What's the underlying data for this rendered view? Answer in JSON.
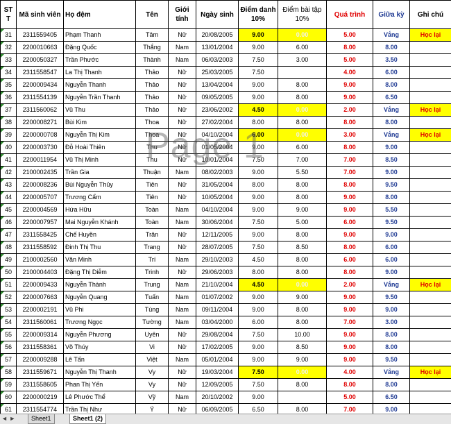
{
  "headers": {
    "stt": "ST T",
    "masv": "Mã sinh viên",
    "hodem": "Họ đệm",
    "ten": "Tên",
    "gioitinh": "Giới tính",
    "ngaysinh": "Ngày sinh",
    "diemdanh": "Điểm danh 10%",
    "baitap": "Điểm bài tập 10%",
    "quatrinh": "Quá trình",
    "giuaky": "Giữa kỳ",
    "ghichu": "Ghi chú"
  },
  "watermark": "Page 1",
  "sheet_tabs": {
    "nav": "◄ ►",
    "tab1": "Sheet1",
    "tab2": "Sheet1 (2)"
  },
  "rows": [
    {
      "stt": "31",
      "masv": "2311559405",
      "hodem": "Phạm Thanh",
      "ten": "Tâm",
      "gt": "Nữ",
      "ns": "20/08/2005",
      "dd": "9.00",
      "bt": "0.00",
      "qt": "5.00",
      "gk": "Vắng",
      "gc": "Học lại",
      "hl": true
    },
    {
      "stt": "32",
      "masv": "2200010663",
      "hodem": "Đặng Quốc",
      "ten": "Thắng",
      "gt": "Nam",
      "ns": "13/01/2004",
      "dd": "9.00",
      "bt": "6.00",
      "qt": "8.00",
      "gk": "8.00",
      "gc": "",
      "hl": false
    },
    {
      "stt": "33",
      "masv": "2200050327",
      "hodem": "Trần Phước",
      "ten": "Thành",
      "gt": "Nam",
      "ns": "06/03/2003",
      "dd": "7.50",
      "bt": "3.00",
      "qt": "5.00",
      "gk": "3.50",
      "gc": "",
      "hl": false
    },
    {
      "stt": "34",
      "masv": "2311558547",
      "hodem": "La Thị Thanh",
      "ten": "Thảo",
      "gt": "Nữ",
      "ns": "25/03/2005",
      "dd": "7.50",
      "bt": "",
      "qt": "4.00",
      "gk": "6.00",
      "gc": "",
      "hl": false
    },
    {
      "stt": "35",
      "masv": "2200009434",
      "hodem": "Nguyễn Thanh",
      "ten": "Thảo",
      "gt": "Nữ",
      "ns": "13/04/2004",
      "dd": "9.00",
      "bt": "8.00",
      "qt": "9.00",
      "gk": "8.00",
      "gc": "",
      "hl": false
    },
    {
      "stt": "36",
      "masv": "2311554139",
      "hodem": "Nguyễn Trần Thanh",
      "ten": "Thảo",
      "gt": "Nữ",
      "ns": "09/05/2005",
      "dd": "9.00",
      "bt": "8.00",
      "qt": "9.00",
      "gk": "6.50",
      "gc": "",
      "hl": false
    },
    {
      "stt": "37",
      "masv": "2311560062",
      "hodem": "Vũ Thu",
      "ten": "Thảo",
      "gt": "Nữ",
      "ns": "23/06/2002",
      "dd": "4.50",
      "bt": "0.00",
      "qt": "2.00",
      "gk": "Vắng",
      "gc": "Học lại",
      "hl": true
    },
    {
      "stt": "38",
      "masv": "2200008271",
      "hodem": "Bùi Kim",
      "ten": "Thoa",
      "gt": "Nữ",
      "ns": "27/02/2004",
      "dd": "8.00",
      "bt": "8.00",
      "qt": "8.00",
      "gk": "8.00",
      "gc": "",
      "hl": false
    },
    {
      "stt": "39",
      "masv": "2200000708",
      "hodem": "Nguyễn Thị Kim",
      "ten": "Thoa",
      "gt": "Nữ",
      "ns": "04/10/2004",
      "dd": "6.00",
      "bt": "0.00",
      "qt": "3.00",
      "gk": "Vắng",
      "gc": "Học lại",
      "hl": true
    },
    {
      "stt": "40",
      "masv": "2200003730",
      "hodem": "Đỗ Hoài Thiên",
      "ten": "Thu",
      "gt": "Nữ",
      "ns": "01/05/2004",
      "dd": "9.00",
      "bt": "6.00",
      "qt": "8.00",
      "gk": "9.00",
      "gc": "",
      "hl": false
    },
    {
      "stt": "41",
      "masv": "2200011954",
      "hodem": "Vũ Thị Minh",
      "ten": "Thu",
      "gt": "Nữ",
      "ns": "10/01/2004",
      "dd": "7.50",
      "bt": "7.00",
      "qt": "7.00",
      "gk": "8.50",
      "gc": "",
      "hl": false
    },
    {
      "stt": "42",
      "masv": "2100002435",
      "hodem": "Trần Gia",
      "ten": "Thuận",
      "gt": "Nam",
      "ns": "08/02/2003",
      "dd": "9.00",
      "bt": "5.50",
      "qt": "7.00",
      "gk": "9.00",
      "gc": "",
      "hl": false
    },
    {
      "stt": "43",
      "masv": "2200008236",
      "hodem": "Bùi Nguyễn Thủy",
      "ten": "Tiên",
      "gt": "Nữ",
      "ns": "31/05/2004",
      "dd": "8.00",
      "bt": "8.00",
      "qt": "8.00",
      "gk": "9.50",
      "gc": "",
      "hl": false
    },
    {
      "stt": "44",
      "masv": "2200005707",
      "hodem": "Trương Cẩm",
      "ten": "Tiên",
      "gt": "Nữ",
      "ns": "10/05/2004",
      "dd": "9.00",
      "bt": "8.00",
      "qt": "9.00",
      "gk": "8.00",
      "gc": "",
      "hl": false
    },
    {
      "stt": "45",
      "masv": "2200004569",
      "hodem": "Hứa Hữu",
      "ten": "Toàn",
      "gt": "Nam",
      "ns": "04/10/2004",
      "dd": "9.00",
      "bt": "9.00",
      "qt": "9.00",
      "gk": "5.50",
      "gc": "",
      "hl": false
    },
    {
      "stt": "46",
      "masv": "2200007957",
      "hodem": "Mai Nguyễn Khánh",
      "ten": "Toàn",
      "gt": "Nam",
      "ns": "30/06/2004",
      "dd": "7.50",
      "bt": "5.00",
      "qt": "6.00",
      "gk": "9.50",
      "gc": "",
      "hl": false
    },
    {
      "stt": "47",
      "masv": "2311558425",
      "hodem": "Chế Huyền",
      "ten": "Trân",
      "gt": "Nữ",
      "ns": "12/11/2005",
      "dd": "9.00",
      "bt": "8.00",
      "qt": "9.00",
      "gk": "9.00",
      "gc": "",
      "hl": false
    },
    {
      "stt": "48",
      "masv": "2311558592",
      "hodem": "Đinh Thị Thu",
      "ten": "Trang",
      "gt": "Nữ",
      "ns": "28/07/2005",
      "dd": "7.50",
      "bt": "8.50",
      "qt": "8.00",
      "gk": "6.00",
      "gc": "",
      "hl": false
    },
    {
      "stt": "49",
      "masv": "2100002560",
      "hodem": "Văn Minh",
      "ten": "Trí",
      "gt": "Nam",
      "ns": "29/10/2003",
      "dd": "4.50",
      "bt": "8.00",
      "qt": "6.00",
      "gk": "6.00",
      "gc": "",
      "hl": false
    },
    {
      "stt": "50",
      "masv": "2100004403",
      "hodem": "Đặng Thị Diễm",
      "ten": "Trinh",
      "gt": "Nữ",
      "ns": "29/06/2003",
      "dd": "8.00",
      "bt": "8.00",
      "qt": "8.00",
      "gk": "9.00",
      "gc": "",
      "hl": false
    },
    {
      "stt": "51",
      "masv": "2200009433",
      "hodem": "Nguyễn Thành",
      "ten": "Trung",
      "gt": "Nam",
      "ns": "21/10/2004",
      "dd": "4.50",
      "bt": "0.00",
      "qt": "2.00",
      "gk": "Vắng",
      "gc": "Học lại",
      "hl": true
    },
    {
      "stt": "52",
      "masv": "2200007663",
      "hodem": "Nguyễn Quang",
      "ten": "Tuấn",
      "gt": "Nam",
      "ns": "01/07/2002",
      "dd": "9.00",
      "bt": "9.00",
      "qt": "9.00",
      "gk": "9.50",
      "gc": "",
      "hl": false
    },
    {
      "stt": "53",
      "masv": "2200002191",
      "hodem": "Vũ Phi",
      "ten": "Tùng",
      "gt": "Nam",
      "ns": "09/11/2004",
      "dd": "9.00",
      "bt": "8.00",
      "qt": "9.00",
      "gk": "9.00",
      "gc": "",
      "hl": false
    },
    {
      "stt": "54",
      "masv": "2311560061",
      "hodem": "Trương Ngọc",
      "ten": "Tường",
      "gt": "Nam",
      "ns": "03/04/2000",
      "dd": "6.00",
      "bt": "8.00",
      "qt": "7.00",
      "gk": "3.00",
      "gc": "",
      "hl": false
    },
    {
      "stt": "55",
      "masv": "2200009314",
      "hodem": "Nguyễn Phương",
      "ten": "Uyên",
      "gt": "Nữ",
      "ns": "29/08/2004",
      "dd": "7.50",
      "bt": "10.00",
      "qt": "9.00",
      "gk": "8.00",
      "gc": "",
      "hl": false
    },
    {
      "stt": "56",
      "masv": "2311558361",
      "hodem": "Võ Thúy",
      "ten": "Vi",
      "gt": "Nữ",
      "ns": "17/02/2005",
      "dd": "9.00",
      "bt": "8.50",
      "qt": "9.00",
      "gk": "8.00",
      "gc": "",
      "hl": false
    },
    {
      "stt": "57",
      "masv": "2200009288",
      "hodem": "Lê Tấn",
      "ten": "Việt",
      "gt": "Nam",
      "ns": "05/01/2004",
      "dd": "9.00",
      "bt": "9.00",
      "qt": "9.00",
      "gk": "9.50",
      "gc": "",
      "hl": false
    },
    {
      "stt": "58",
      "masv": "2311559671",
      "hodem": "Nguyễn Thị Thanh",
      "ten": "Vy",
      "gt": "Nữ",
      "ns": "19/03/2004",
      "dd": "7.50",
      "bt": "0.00",
      "qt": "4.00",
      "gk": "Vắng",
      "gc": "Học lại",
      "hl": true
    },
    {
      "stt": "59",
      "masv": "2311558605",
      "hodem": "Phan Thị Yến",
      "ten": "Vy",
      "gt": "Nữ",
      "ns": "12/09/2005",
      "dd": "7.50",
      "bt": "8.00",
      "qt": "8.00",
      "gk": "8.00",
      "gc": "",
      "hl": false
    },
    {
      "stt": "60",
      "masv": "2200000219",
      "hodem": "Lê Phước Thể",
      "ten": "Vỹ",
      "gt": "Nam",
      "ns": "20/10/2002",
      "dd": "9.00",
      "bt": "",
      "qt": "5.00",
      "gk": "6.50",
      "gc": "",
      "hl": false
    },
    {
      "stt": "61",
      "masv": "2311554774",
      "hodem": "Trần Thị Như",
      "ten": "Ý",
      "gt": "Nữ",
      "ns": "06/09/2005",
      "dd": "6.50",
      "bt": "8.00",
      "qt": "7.00",
      "gk": "9.00",
      "gc": "",
      "hl": false
    }
  ]
}
